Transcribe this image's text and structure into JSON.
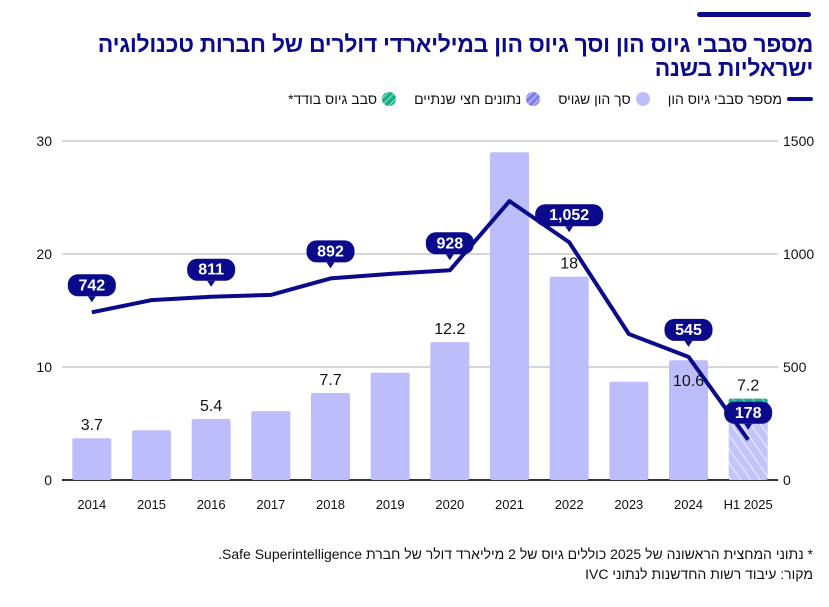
{
  "title": "מספר סבבי גיוס הון וסך גיוס הון במיליארדי דולרים של חברות טכנולוגיה ישראליות בשנה",
  "legend": [
    {
      "label": "מספר סבבי גיוס הון",
      "type": "line",
      "color": "#0a0a8a"
    },
    {
      "label": "סך הון שגויס",
      "type": "dot",
      "color": "#bdbdfb"
    },
    {
      "label": "נתונים חצי שנתיים",
      "type": "dot-hatched",
      "color": "#8080ee"
    },
    {
      "label": "סבב גיוס בודד*",
      "type": "dot-hatched",
      "color": "#1aae88"
    }
  ],
  "footnote": "* נתוני המחצית הראשונה של 2025 כוללים גיוס של 2 מיליארד דולר של חברת Safe Superintelligence.",
  "source": "מקור: עיבוד רשות החדשנות לנתוני IVC",
  "chart_data": {
    "type": "bar",
    "title": "מספר סבבי גיוס הון וסך גיוס הון במיליארדי דולרים של חברות טכנולוגיה ישראליות בשנה",
    "categories": [
      "2014",
      "2015",
      "2016",
      "2017",
      "2018",
      "2019",
      "2020",
      "2021",
      "2022",
      "2023",
      "2024",
      "H1 2025"
    ],
    "left_axis": {
      "min": 0,
      "max": 30,
      "ticks": [
        0,
        10,
        20,
        30
      ]
    },
    "right_axis": {
      "min": 0,
      "max": 1500,
      "ticks": [
        0,
        500,
        1000,
        1500
      ]
    },
    "grid": true,
    "series": [
      {
        "name": "סך הון שגויס",
        "type": "bar",
        "axis": "left",
        "color": "#bdbdfb",
        "values": [
          3.7,
          4.4,
          5.4,
          6.1,
          7.7,
          9.5,
          12.2,
          29.0,
          18,
          8.7,
          10.6,
          5.2
        ],
        "labels": [
          "3.7",
          "",
          "5.4",
          "",
          "7.7",
          "",
          "12.2",
          "",
          "18",
          "",
          "10.6",
          ""
        ]
      },
      {
        "name": "סבב גיוס בודד*",
        "type": "bar-stacked",
        "axis": "left",
        "color": "#1aae88",
        "values": [
          0,
          0,
          0,
          0,
          0,
          0,
          0,
          0,
          0,
          0,
          0,
          2.0
        ],
        "labels": [
          "",
          "",
          "",
          "",
          "",
          "",
          "",
          "",
          "",
          "",
          "",
          "7.2"
        ]
      },
      {
        "name": "מספר סבבי גיוס הון",
        "type": "line",
        "axis": "right",
        "color": "#0a0a8a",
        "values": [
          742,
          796,
          811,
          819,
          892,
          912,
          928,
          1234,
          1052,
          646,
          545,
          178
        ],
        "labels": [
          "742",
          "",
          "811",
          "",
          "892",
          "",
          "928",
          "",
          "1,052",
          "",
          "545",
          "178"
        ]
      }
    ],
    "hatched_category": "H1 2025"
  }
}
